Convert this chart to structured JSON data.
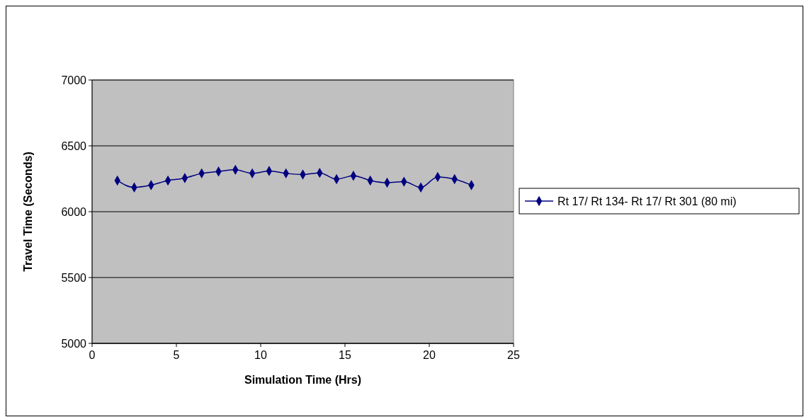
{
  "chart_data": {
    "type": "line",
    "xlabel": "Simulation Time (Hrs)",
    "ylabel": "Travel Time (Seconds)",
    "x": [
      1.5,
      2.5,
      3.5,
      4.5,
      5.5,
      6.5,
      7.5,
      8.5,
      9.5,
      10.5,
      11.5,
      12.5,
      13.5,
      14.5,
      15.5,
      16.5,
      17.5,
      18.5,
      19.5,
      20.5,
      21.5,
      22.5
    ],
    "series": [
      {
        "name": "Rt 17/ Rt 134- Rt 17/ Rt 301 (80 mi)",
        "color": "#000080",
        "values": [
          6237,
          6184,
          6202,
          6237,
          6255,
          6291,
          6305,
          6318,
          6291,
          6309,
          6291,
          6282,
          6295,
          6247,
          6273,
          6237,
          6220,
          6228,
          6184,
          6264,
          6247,
          6202
        ]
      }
    ],
    "xlim": [
      0,
      25
    ],
    "xticks": [
      0,
      5,
      10,
      15,
      20,
      25
    ],
    "ylim": [
      5000,
      7000
    ],
    "yticks": [
      5000,
      5500,
      6000,
      6500,
      7000
    ],
    "grid": "y",
    "legend": "right",
    "marker": "diamond",
    "line_style": "solid"
  }
}
